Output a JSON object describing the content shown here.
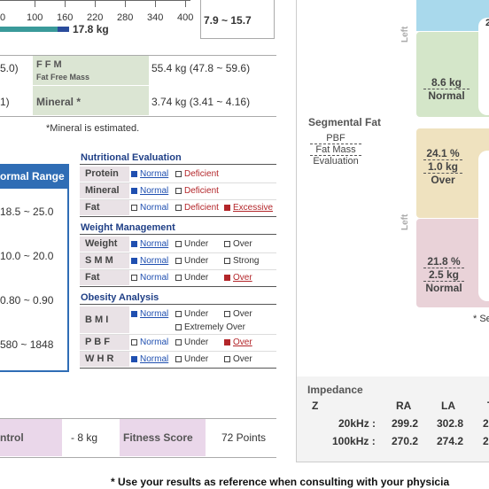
{
  "scale": {
    "ticks": [
      "0",
      "100",
      "160",
      "220",
      "280",
      "340",
      "400"
    ],
    "value": "17.8 kg"
  },
  "range_box": "7.9 ~ 15.7",
  "composition": [
    {
      "left": "5.0)",
      "label": "F F M",
      "sublabel": "Fat Free Mass",
      "value": "55.4 kg (47.8 ~ 59.6)"
    },
    {
      "left": "1)",
      "label": "Mineral *",
      "value": "3.74 kg (3.41 ~ 4.16)"
    }
  ],
  "note": "*Mineral is estimated.",
  "normal_range": {
    "header": "ormal Range",
    "values": [
      "18.5 ~ 25.0",
      "10.0 ~ 20.0",
      "0.80 ~ 0.90",
      "580 ~ 1848"
    ]
  },
  "evaluations": [
    {
      "title": "Nutritional Evaluation",
      "rows": [
        {
          "label": "Protein",
          "options": [
            "Normal",
            "Deficient"
          ],
          "checked": [
            true,
            false
          ]
        },
        {
          "label": "Mineral",
          "options": [
            "Normal",
            "Deficient"
          ],
          "checked": [
            true,
            false
          ]
        },
        {
          "label": "Fat",
          "options": [
            "Normal",
            "Deficient",
            "Excessive"
          ],
          "checked": [
            false,
            false,
            true
          ]
        }
      ]
    },
    {
      "title": "Weight Management",
      "rows": [
        {
          "label": "Weight",
          "options": [
            "Normal",
            "Under",
            "Over"
          ],
          "checked": [
            true,
            false,
            false
          ]
        },
        {
          "label": "S M M",
          "options": [
            "Normal",
            "Under",
            "Strong"
          ],
          "checked": [
            true,
            false,
            false
          ]
        },
        {
          "label": "Fat",
          "options": [
            "Normal",
            "Under",
            "Over"
          ],
          "checked": [
            false,
            false,
            true
          ]
        }
      ]
    },
    {
      "title": "Obesity Analysis",
      "rows": [
        {
          "label": "B M I",
          "options": [
            "Normal",
            "Under",
            "Over",
            "Extremely Over"
          ],
          "checked": [
            true,
            false,
            false,
            false
          ]
        },
        {
          "label": "P B F",
          "options": [
            "Normal",
            "Under",
            "Over"
          ],
          "checked": [
            false,
            false,
            true
          ]
        },
        {
          "label": "W H R",
          "options": [
            "Normal",
            "Under",
            "Over"
          ],
          "checked": [
            true,
            false,
            false
          ]
        }
      ]
    }
  ],
  "control": {
    "label": "ntrol",
    "value": "- 8 kg"
  },
  "fitness": {
    "label": "Fitness Score",
    "value": "72 Points"
  },
  "footer": "* Use your results as reference when consulting with your physicia",
  "segmental": {
    "title": "Segmental Fat",
    "legend": [
      "PBF",
      "Fat Mass",
      "Evaluation"
    ],
    "side": "Left",
    "side2": "Left",
    "top": {
      "mass": "8.6 kg",
      "eval": "Normal"
    },
    "upper": {
      "pbf": "24.1 %",
      "mass": "1.0 kg",
      "eval": "Over"
    },
    "lower": {
      "pbf": "21.8 %",
      "mass": "2.5 kg",
      "eval": "Normal"
    },
    "note": "* Se",
    "cut": "2"
  },
  "impedance": {
    "title": "Impedance",
    "z": "Z",
    "columns": [
      "RA",
      "LA",
      "T"
    ],
    "rows": [
      {
        "label": "20kHz :",
        "values": [
          "299.2",
          "302.8",
          "2"
        ]
      },
      {
        "label": "100kHz :",
        "values": [
          "270.2",
          "274.2",
          "2"
        ]
      }
    ]
  }
}
